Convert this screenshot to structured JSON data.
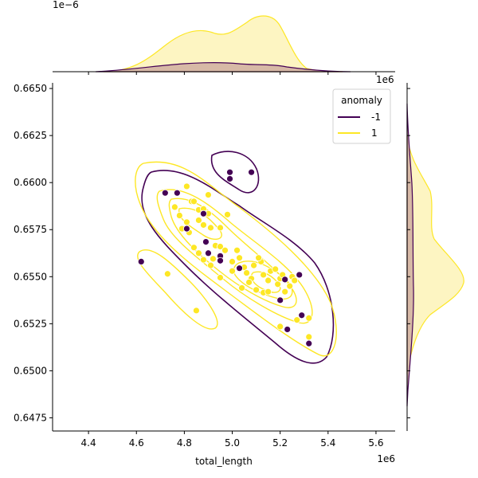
{
  "chart_data": {
    "type": "scatter",
    "subtype": "jointplot-kde",
    "xlabel": "total_length",
    "ylabel": "",
    "x_offset_label": "1e6",
    "y_offset_label": "1e6",
    "top_marginal_offset_label": "1e−6",
    "xlim": [
      4.25,
      5.68
    ],
    "ylim": [
      0.6468,
      0.6653
    ],
    "x_ticks": [
      "4.4",
      "4.6",
      "4.8",
      "5.0",
      "5.2",
      "5.4",
      "5.6"
    ],
    "y_ticks": [
      "0.6475",
      "0.6500",
      "0.6525",
      "0.6550",
      "0.6575",
      "0.6600",
      "0.6625",
      "0.6650"
    ],
    "legend": {
      "title": "anomaly",
      "placement": "top-right"
    },
    "colors": {
      "-1": "#440154",
      "1": "#fde725",
      "marginal_fill_-1": "#d7b9a6",
      "marginal_fill_1": "#fdf5c2"
    },
    "series": [
      {
        "name": "-1",
        "points": [
          [
            4.99,
            0.66055
          ],
          [
            4.99,
            0.6602
          ],
          [
            5.08,
            0.66055
          ],
          [
            4.72,
            0.65945
          ],
          [
            4.77,
            0.65945
          ],
          [
            4.81,
            0.65755
          ],
          [
            4.88,
            0.65835
          ],
          [
            4.89,
            0.65685
          ],
          [
            4.9,
            0.65625
          ],
          [
            4.95,
            0.6561
          ],
          [
            4.95,
            0.65585
          ],
          [
            5.03,
            0.65545
          ],
          [
            4.62,
            0.6558
          ],
          [
            5.22,
            0.65485
          ],
          [
            5.2,
            0.65375
          ],
          [
            5.23,
            0.6522
          ],
          [
            5.28,
            0.6551
          ],
          [
            5.29,
            0.65295
          ],
          [
            5.32,
            0.65145
          ]
        ]
      },
      {
        "name": "1",
        "points": [
          [
            4.81,
            0.6598
          ],
          [
            4.83,
            0.659
          ],
          [
            4.9,
            0.65935
          ],
          [
            4.76,
            0.6587
          ],
          [
            4.78,
            0.65825
          ],
          [
            4.79,
            0.65755
          ],
          [
            4.81,
            0.6579
          ],
          [
            4.82,
            0.65735
          ],
          [
            4.84,
            0.659
          ],
          [
            4.86,
            0.65855
          ],
          [
            4.86,
            0.658
          ],
          [
            4.88,
            0.65775
          ],
          [
            4.9,
            0.65835
          ],
          [
            4.91,
            0.6576
          ],
          [
            4.84,
            0.65655
          ],
          [
            4.86,
            0.65625
          ],
          [
            4.88,
            0.6559
          ],
          [
            4.91,
            0.6556
          ],
          [
            4.92,
            0.65595
          ],
          [
            4.93,
            0.65665
          ],
          [
            4.95,
            0.6566
          ],
          [
            4.97,
            0.6564
          ],
          [
            4.98,
            0.6583
          ],
          [
            5.0,
            0.6558
          ],
          [
            5.03,
            0.656
          ],
          [
            5.05,
            0.6555
          ],
          [
            5.06,
            0.6552
          ],
          [
            5.08,
            0.6549
          ],
          [
            5.09,
            0.6556
          ],
          [
            5.1,
            0.6543
          ],
          [
            5.12,
            0.6558
          ],
          [
            5.13,
            0.6551
          ],
          [
            5.13,
            0.65415
          ],
          [
            5.15,
            0.6548
          ],
          [
            5.16,
            0.6553
          ],
          [
            5.18,
            0.6554
          ],
          [
            5.19,
            0.6546
          ],
          [
            5.2,
            0.6549
          ],
          [
            5.21,
            0.6551
          ],
          [
            5.22,
            0.6542
          ],
          [
            5.24,
            0.6545
          ],
          [
            5.25,
            0.655
          ],
          [
            5.26,
            0.6548
          ],
          [
            5.27,
            0.6527
          ],
          [
            5.2,
            0.65235
          ],
          [
            5.32,
            0.6528
          ],
          [
            5.32,
            0.6518
          ],
          [
            4.73,
            0.65515
          ],
          [
            4.85,
            0.6532
          ],
          [
            4.95,
            0.65495
          ],
          [
            5.0,
            0.6553
          ],
          [
            5.04,
            0.6544
          ],
          [
            5.07,
            0.6547
          ],
          [
            5.15,
            0.6542
          ],
          [
            4.88,
            0.6586
          ],
          [
            4.95,
            0.6576
          ],
          [
            5.02,
            0.6564
          ],
          [
            5.11,
            0.656
          ]
        ]
      }
    ]
  }
}
